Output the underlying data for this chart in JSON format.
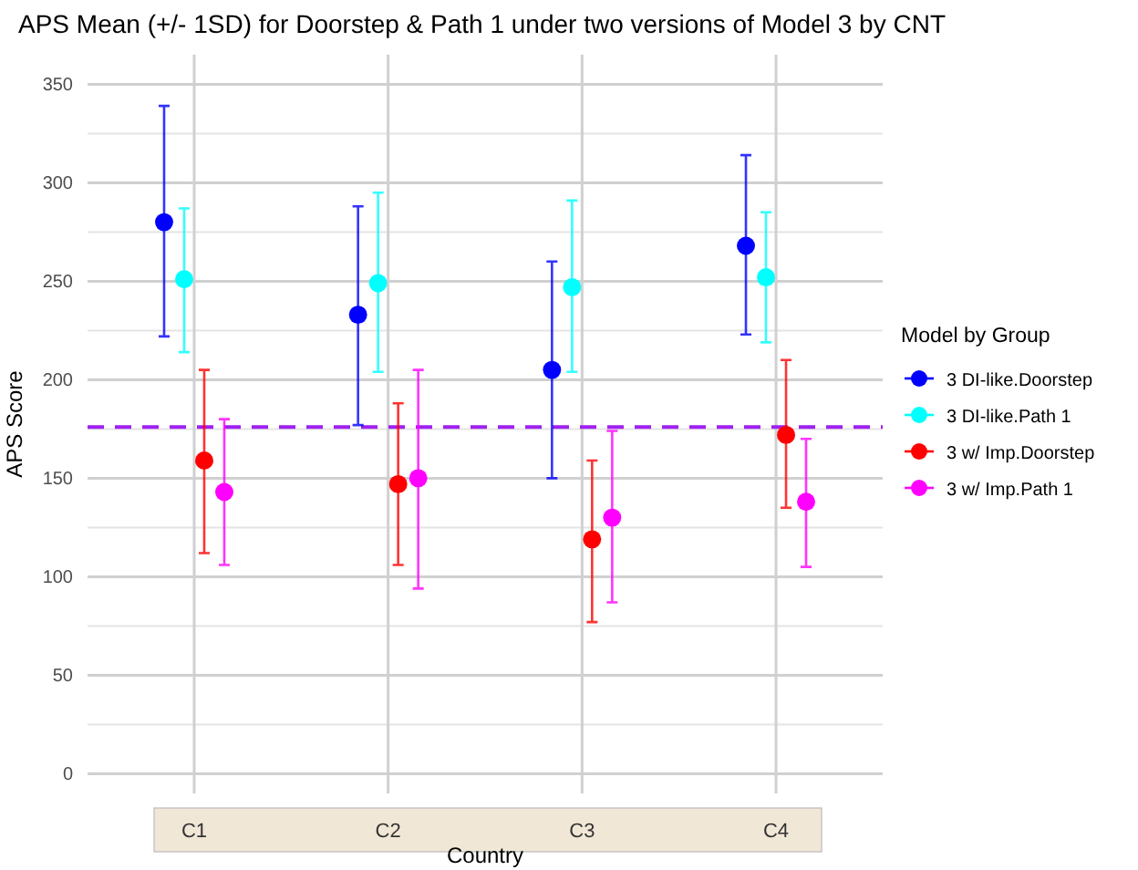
{
  "chart_data": {
    "type": "scatter",
    "title": "APS Mean (+/- 1SD) for Doorstep & Path 1 under two versions of Model 3 by CNT",
    "xlabel": "Country",
    "ylabel": "APS Score",
    "legend_title": "Model by Group",
    "categories": [
      "C1",
      "C2",
      "C3",
      "C4"
    ],
    "series": [
      {
        "name": "3 DI-like.Doorstep",
        "color": "#0000ff",
        "values": [
          280,
          233,
          205,
          268
        ],
        "errors": [
          [
            222,
            339
          ],
          [
            177,
            288
          ],
          [
            150,
            260
          ],
          [
            223,
            314
          ]
        ]
      },
      {
        "name": "3 DI-like.Path 1",
        "color": "#00ffff",
        "values": [
          251,
          249,
          247,
          252
        ],
        "errors": [
          [
            214,
            287
          ],
          [
            204,
            295
          ],
          [
            204,
            291
          ],
          [
            219,
            285
          ]
        ]
      },
      {
        "name": "3 w/ Imp.Doorstep",
        "color": "#ff0000",
        "values": [
          159,
          147,
          119,
          172
        ],
        "errors": [
          [
            112,
            205
          ],
          [
            106,
            188
          ],
          [
            77,
            159
          ],
          [
            135,
            210
          ]
        ]
      },
      {
        "name": "3 w/ Imp.Path 1",
        "color": "#ff00ff",
        "values": [
          143,
          150,
          130,
          138
        ],
        "errors": [
          [
            106,
            180
          ],
          [
            94,
            205
          ],
          [
            87,
            174
          ],
          [
            105,
            170
          ]
        ]
      }
    ],
    "ylim": [
      -10,
      365
    ],
    "yticks": [
      0,
      50,
      100,
      150,
      200,
      250,
      300,
      350
    ],
    "ref_lines": [
      {
        "axis": "y",
        "value": 176,
        "color": "#a020f0",
        "line_style": "dashed"
      }
    ],
    "grid": true,
    "legend": "right",
    "marker": "circle"
  }
}
